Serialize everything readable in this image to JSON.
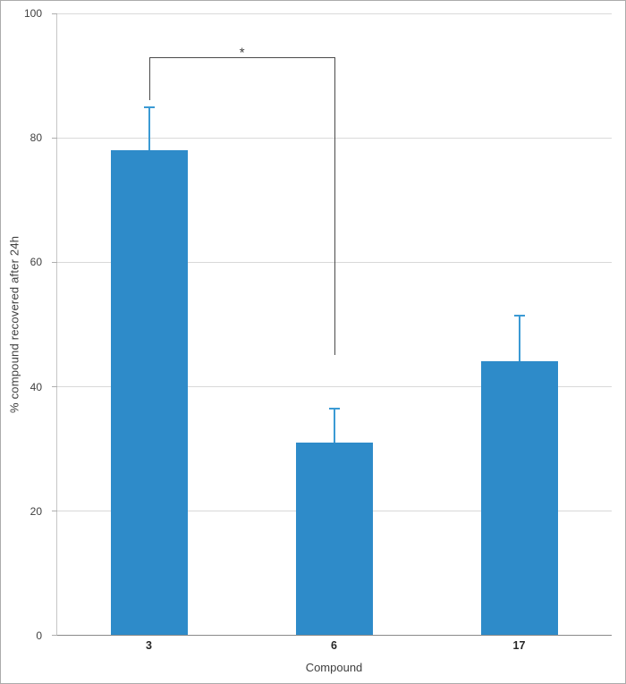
{
  "figure": {
    "background_color": "#ffffff",
    "border_color": "#ababab"
  },
  "chart_data": {
    "type": "bar",
    "title": "",
    "categories": [
      "3",
      "6",
      "17"
    ],
    "values": [
      78,
      31,
      44
    ],
    "errors": [
      7,
      5.5,
      7.5
    ],
    "xlabel": "Compound",
    "ylabel": "% compound  recovered after 24h",
    "ylim": [
      0,
      100
    ],
    "yticks": [
      0,
      20,
      40,
      60,
      80,
      100
    ],
    "grid": true,
    "legend_position": "none",
    "bar_color": "#2E8BC9",
    "error_bar_color": "#3B9AD4",
    "gridline_color": "#d9d9d9",
    "annotation": {
      "type": "significance-bracket",
      "label": "*",
      "from": "3",
      "to": "6",
      "top": 93,
      "left_drop_to": 86,
      "right_drop_to": 45
    }
  }
}
